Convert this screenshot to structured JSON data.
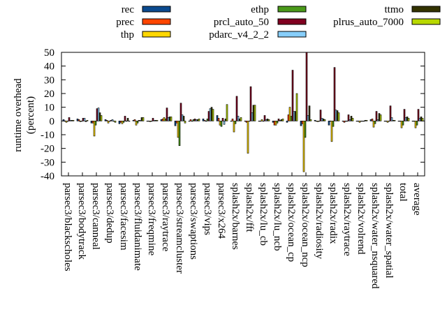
{
  "chart_data": {
    "type": "bar",
    "title": "",
    "xlabel": "",
    "ylabel": "runtime overhead (percent)",
    "ylabel_lines": [
      "runtime overhead",
      "(percent)"
    ],
    "ylim": [
      -40,
      50
    ],
    "yticks": [
      50,
      40,
      30,
      20,
      10,
      0,
      -10,
      -20,
      -30,
      -40
    ],
    "legend_position": "top",
    "categories": [
      "parsec3/blackscholes",
      "parsec3/bodytrack",
      "parsec3/canneal",
      "parsec3/dedup",
      "parsec3/facesim",
      "parsec3/fluidanimate",
      "parsec3/freqmine",
      "parsec3/raytrace",
      "parsec3/streamcluster",
      "parsec3/swaptions",
      "parsec3/vips",
      "parsec3/x264",
      "splash2x/barnes",
      "splash2x/fft",
      "splash2x/lu_cb",
      "splash2x/lu_ncb",
      "splash2x/ocean_cp",
      "splash2x/ocean_ncp",
      "splash2x/radiosity",
      "splash2x/radix",
      "splash2x/raytrace",
      "splash2x/volrend",
      "splash2x/water_nsquared",
      "splash2x/water_spatial",
      "total",
      "average"
    ],
    "series": [
      {
        "name": "rec",
        "color": "#0b4a8f",
        "values": [
          1,
          1.5,
          -1.5,
          1,
          -2,
          0.5,
          0,
          1,
          -3.5,
          0,
          1.5,
          4,
          0,
          0,
          0,
          -1,
          -1,
          -3.5,
          0.5,
          -3,
          0,
          0,
          1,
          0,
          0,
          0
        ]
      },
      {
        "name": "prec",
        "color": "#ff4500",
        "values": [
          0,
          1,
          -1.5,
          0.5,
          -1,
          1,
          0,
          1.5,
          -1.5,
          1,
          0.5,
          2,
          1.5,
          -1,
          0,
          -3,
          4.5,
          -2,
          0,
          0,
          -1,
          0,
          1.5,
          0,
          0,
          0
        ]
      },
      {
        "name": "thp",
        "color": "#ffd700",
        "values": [
          -1,
          -0.5,
          -11,
          -1.5,
          -2,
          -3,
          -0.5,
          2.5,
          -12,
          0,
          0,
          -3,
          -8,
          -23.5,
          1,
          -3,
          10,
          -37,
          -0.5,
          -15,
          0,
          -1,
          -4.5,
          -1,
          -5,
          -5
        ]
      },
      {
        "name": "ethp",
        "color": "#4a9a1a",
        "values": [
          0,
          0,
          -3,
          0,
          -1,
          -1.5,
          0,
          1.5,
          -18,
          1,
          1.5,
          -4,
          -2,
          0,
          0,
          -1.5,
          3.5,
          -12,
          0,
          -4,
          0,
          0,
          -2,
          0,
          -3,
          -3
        ]
      },
      {
        "name": "prcl_auto_50",
        "color": "#800020",
        "values": [
          2.5,
          2,
          9,
          0.5,
          3.5,
          0.5,
          2,
          9.5,
          13,
          1.5,
          7,
          2,
          18,
          25,
          4,
          1.5,
          37,
          50,
          8,
          39,
          4.5,
          0,
          7,
          11,
          8.5,
          8.5
        ]
      },
      {
        "name": "pdarc_v4_2_2",
        "color": "#87cefa",
        "values": [
          0.5,
          2,
          9.5,
          1,
          0,
          0.5,
          0.5,
          2.5,
          4.5,
          1,
          9,
          -2.5,
          3.5,
          6,
          1,
          0.5,
          7,
          4,
          2,
          8,
          1,
          0,
          1,
          2.5,
          2.5,
          2
        ]
      },
      {
        "name": "ttmo",
        "color": "#333300",
        "values": [
          0.5,
          -0.5,
          6,
          0,
          2,
          2.5,
          0.5,
          3,
          3.5,
          1,
          10,
          1.5,
          1.5,
          11.5,
          1.5,
          1,
          7,
          11,
          1.5,
          7.5,
          3.5,
          0.5,
          5.5,
          0.5,
          3,
          3
        ]
      },
      {
        "name": "plrus_auto_7000",
        "color": "#b8d800",
        "values": [
          0.5,
          0.5,
          4,
          -1,
          0,
          2.5,
          0.5,
          3,
          -1.5,
          1.5,
          8.5,
          12,
          2.5,
          11.5,
          1,
          1.5,
          20,
          1,
          1,
          6,
          2,
          0.5,
          4.5,
          0.5,
          2,
          2
        ]
      }
    ]
  }
}
